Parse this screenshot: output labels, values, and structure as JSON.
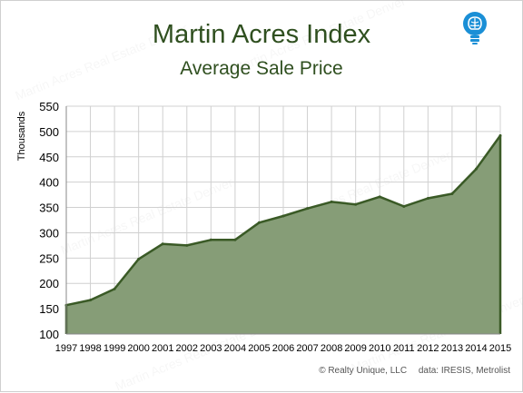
{
  "brand": {
    "logo": "lightbulb-brain-icon",
    "logo_color": "#1a8fd6",
    "watermark": "Martin Acres Real Estate Denver"
  },
  "chart_data": {
    "type": "area",
    "title": "Martin Acres Index",
    "subtitle": "Average Sale Price",
    "xlabel": "",
    "ylabel": "Thousands",
    "x": [
      "1997",
      "1998",
      "1999",
      "2000",
      "2001",
      "2002",
      "2003",
      "2004",
      "2005",
      "2006",
      "2007",
      "2008",
      "2009",
      "2010",
      "2011",
      "2012",
      "2013",
      "2014",
      "2015"
    ],
    "series": [
      {
        "values": [
          157,
          167,
          189,
          248,
          278,
          275,
          286,
          286,
          320,
          333,
          348,
          361,
          356,
          371,
          352,
          368,
          377,
          426,
          492
        ]
      }
    ],
    "ylim": [
      100,
      550
    ],
    "yticks": [
      100,
      150,
      200,
      250,
      300,
      350,
      400,
      450,
      500,
      550
    ],
    "grid": true,
    "legend": "none",
    "colors": {
      "fill": "#869d77",
      "line": "#3a5a26",
      "text": "#2f4f1f",
      "grid": "#d0d0d0"
    }
  },
  "footer": {
    "copyright": "© Realty Unique, LLC",
    "source": "data: IRESIS, Metrolist"
  }
}
